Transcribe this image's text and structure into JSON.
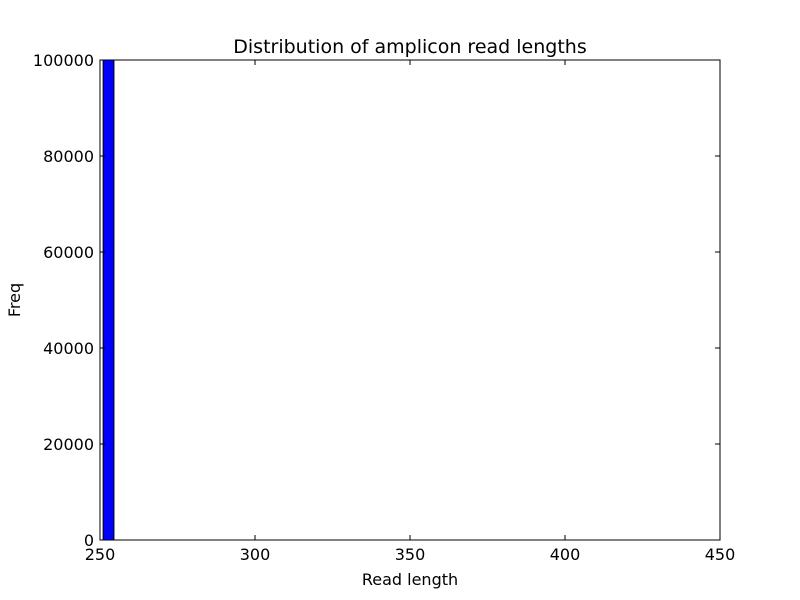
{
  "chart_data": {
    "type": "bar",
    "title": "Distribution of amplicon read lengths",
    "xlabel": "Read length",
    "ylabel": "Freq",
    "xlim": [
      250,
      450
    ],
    "ylim": [
      0,
      100000
    ],
    "xticks": [
      250,
      300,
      350,
      400,
      450
    ],
    "xtick_labels": [
      "250",
      "300",
      "350",
      "400",
      "450"
    ],
    "yticks": [
      0,
      20000,
      40000,
      60000,
      80000,
      100000
    ],
    "ytick_labels": [
      "0",
      "20000",
      "40000",
      "60000",
      "80000",
      "100000"
    ],
    "bars": [
      {
        "x_start": 251,
        "x_end": 254.5,
        "value": 100000
      }
    ],
    "grid": false,
    "bar_color": "#0000ff",
    "edge_color": "#000000"
  }
}
